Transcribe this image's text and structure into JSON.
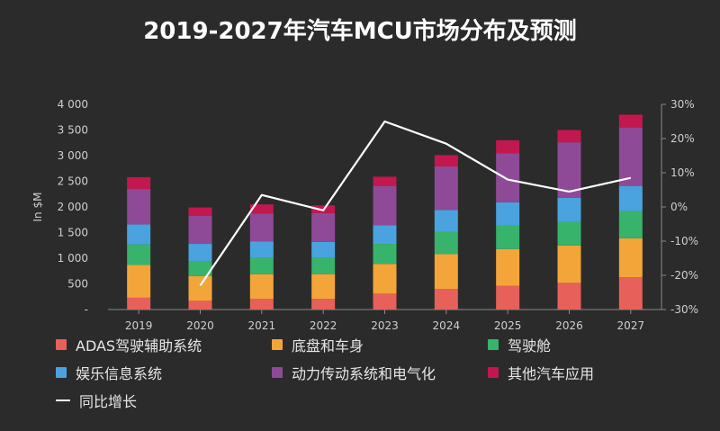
{
  "chart_data": {
    "type": "bar",
    "title": "2019-2027年汽车MCU市场分布及预测",
    "categories": [
      "2019",
      "2020",
      "2021",
      "2022",
      "2023",
      "2024",
      "2025",
      "2026",
      "2027"
    ],
    "ylabel": "In $M",
    "ylim": [
      0,
      4000
    ],
    "yticks": [
      "4 000",
      "3 500",
      "3 000",
      "2 500",
      "2 000",
      "1 500",
      "1 000",
      "500",
      "-"
    ],
    "y2lim": [
      -30,
      30
    ],
    "y2ticks": [
      "30%",
      "20%",
      "10%",
      "0%",
      "-10%",
      "-20%",
      "-30%"
    ],
    "stacked": true,
    "series": [
      {
        "name": "ADAS驾驶辅助系统",
        "color": "#e8605a",
        "values": [
          230,
          170,
          210,
          210,
          310,
          400,
          460,
          520,
          630
        ]
      },
      {
        "name": "底盘和车身",
        "color": "#f3a53a",
        "values": [
          640,
          480,
          480,
          480,
          580,
          680,
          720,
          730,
          760
        ]
      },
      {
        "name": "驾驶舱",
        "color": "#37b36b",
        "values": [
          400,
          290,
          320,
          320,
          390,
          430,
          460,
          460,
          530
        ]
      },
      {
        "name": "娱乐信息系统",
        "color": "#4aa3df",
        "values": [
          390,
          340,
          320,
          310,
          360,
          430,
          450,
          470,
          490
        ]
      },
      {
        "name": "动力传动系统和电气化",
        "color": "#8e4a97",
        "values": [
          690,
          550,
          540,
          560,
          770,
          850,
          960,
          1080,
          1140
        ]
      },
      {
        "name": "其他汽车应用",
        "color": "#c3174f",
        "values": [
          230,
          160,
          180,
          150,
          180,
          220,
          250,
          240,
          250
        ]
      }
    ],
    "line_series": {
      "name": "同比增长",
      "color": "#ffffff",
      "values": [
        null,
        -23,
        3.5,
        -1,
        25,
        18.5,
        8,
        4.5,
        8.5
      ]
    },
    "legend_position": "bottom",
    "grid": false
  }
}
